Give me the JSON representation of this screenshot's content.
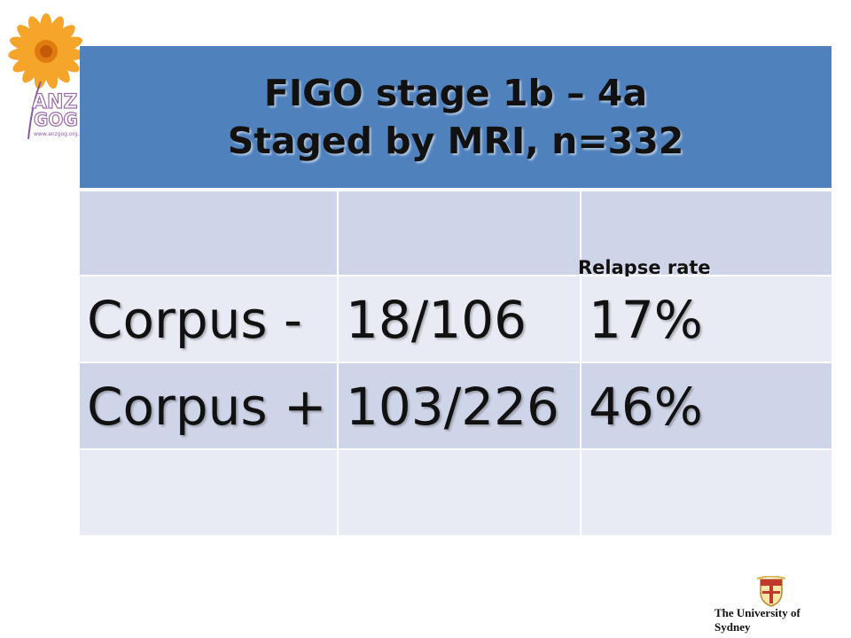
{
  "header": {
    "line1": "FIGO stage 1b – 4a",
    "line2": "Staged by MRI, n=332"
  },
  "table": {
    "column_header": "Relapse rate",
    "rows": [
      {
        "label": "Corpus -",
        "ratio": "18/106",
        "rate": "17%"
      },
      {
        "label": "Corpus +",
        "ratio": "103/226",
        "rate": "46%"
      }
    ]
  },
  "logo": {
    "icon": "sunflower-icon",
    "text": "ANZGOG",
    "url_text": "www.anzgog.org.au"
  },
  "footer": {
    "university": "The University of Sydney",
    "icon": "university-seal-icon"
  },
  "colors": {
    "header_bg": "#4f81bd",
    "row_dark": "#cfd5e8",
    "row_light": "#e8ebf4"
  }
}
